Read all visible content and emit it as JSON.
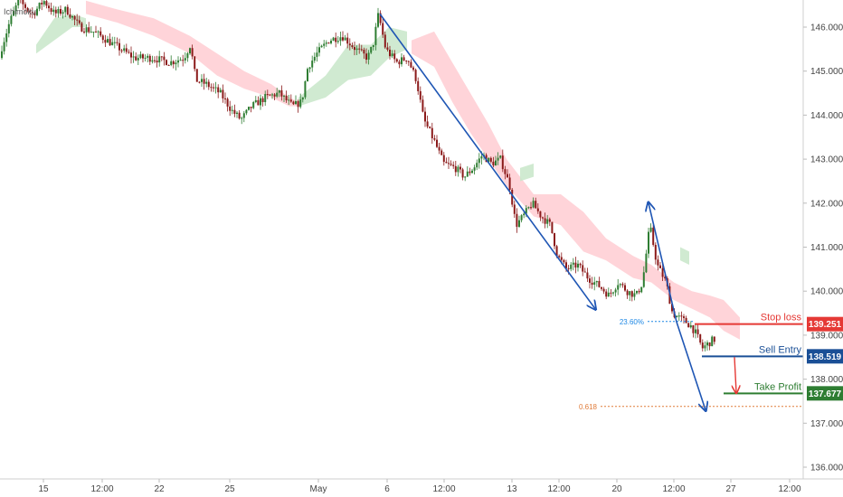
{
  "indicator": "Ichimoku",
  "colors": {
    "up": "#2e7d32",
    "down": "#8b1a1a",
    "cloud_bull": "#c8e6c9",
    "cloud_bear": "#ffcdd2",
    "arrow": "#1f56b4",
    "stop": "#e53935",
    "entry": "#1a4f96",
    "profit": "#2e7d32",
    "fib_236": "#1e88e5",
    "fib_618": "#e07b39"
  },
  "chart_data": {
    "type": "candlestick",
    "ylim": [
      135.8,
      146.6
    ],
    "y_ticks": [
      "146.000",
      "145.000",
      "144.000",
      "143.000",
      "142.000",
      "141.000",
      "140.000",
      "139.000",
      "138.000",
      "137.000",
      "136.000"
    ],
    "x_ticks": [
      "15",
      "12:00",
      "22",
      "25",
      "May",
      "6",
      "12:00",
      "13",
      "12:00",
      "20",
      "12:00",
      "27",
      "12:00"
    ],
    "price_path": [
      [
        0,
        145.3
      ],
      [
        12,
        146.1
      ],
      [
        22,
        146.6
      ],
      [
        38,
        146.3
      ],
      [
        50,
        146.6
      ],
      [
        62,
        146.3
      ],
      [
        75,
        146.4
      ],
      [
        90,
        146.0
      ],
      [
        105,
        145.9
      ],
      [
        120,
        145.7
      ],
      [
        135,
        145.5
      ],
      [
        150,
        145.3
      ],
      [
        170,
        145.3
      ],
      [
        190,
        145.2
      ],
      [
        205,
        145.3
      ],
      [
        212,
        145.6
      ],
      [
        218,
        144.8
      ],
      [
        230,
        144.7
      ],
      [
        245,
        144.5
      ],
      [
        258,
        144.1
      ],
      [
        268,
        143.9
      ],
      [
        280,
        144.2
      ],
      [
        295,
        144.4
      ],
      [
        310,
        144.5
      ],
      [
        325,
        144.2
      ],
      [
        335,
        144.3
      ],
      [
        342,
        145.1
      ],
      [
        352,
        145.4
      ],
      [
        365,
        145.7
      ],
      [
        380,
        145.8
      ],
      [
        395,
        145.5
      ],
      [
        408,
        145.3
      ],
      [
        414,
        145.6
      ],
      [
        420,
        146.3
      ],
      [
        428,
        145.5
      ],
      [
        440,
        145.2
      ],
      [
        452,
        145.3
      ],
      [
        462,
        144.8
      ],
      [
        470,
        143.9
      ],
      [
        482,
        143.4
      ],
      [
        492,
        142.9
      ],
      [
        505,
        142.8
      ],
      [
        515,
        142.6
      ],
      [
        525,
        142.8
      ],
      [
        535,
        143.1
      ],
      [
        545,
        142.9
      ],
      [
        555,
        143.0
      ],
      [
        565,
        142.4
      ],
      [
        572,
        141.5
      ],
      [
        580,
        141.7
      ],
      [
        590,
        142.0
      ],
      [
        600,
        141.7
      ],
      [
        610,
        141.5
      ],
      [
        618,
        140.8
      ],
      [
        628,
        140.5
      ],
      [
        640,
        140.6
      ],
      [
        652,
        140.3
      ],
      [
        665,
        140.1
      ],
      [
        675,
        139.9
      ],
      [
        685,
        140.2
      ],
      [
        695,
        140.0
      ],
      [
        705,
        139.9
      ],
      [
        712,
        140.2
      ],
      [
        720,
        141.5
      ],
      [
        728,
        140.6
      ],
      [
        738,
        140.2
      ],
      [
        745,
        139.5
      ],
      [
        752,
        139.4
      ],
      [
        760,
        139.3
      ],
      [
        766,
        139.2
      ],
      [
        772,
        139.0
      ],
      [
        778,
        138.7
      ],
      [
        784,
        138.8
      ],
      [
        790,
        138.9
      ]
    ],
    "cloud_segments": [
      {
        "kind": "bull",
        "top": [
          [
            40,
            145.6
          ],
          [
            60,
            146.2
          ],
          [
            80,
            146.3
          ],
          [
            95,
            146.2
          ]
        ],
        "bottom": [
          [
            40,
            145.4
          ],
          [
            60,
            145.7
          ],
          [
            80,
            146.0
          ],
          [
            95,
            146.0
          ]
        ]
      },
      {
        "kind": "bear",
        "top": [
          [
            95,
            146.6
          ],
          [
            130,
            146.4
          ],
          [
            170,
            146.2
          ],
          [
            210,
            145.8
          ],
          [
            240,
            145.4
          ],
          [
            270,
            145.0
          ]
        ],
        "bottom": [
          [
            95,
            146.3
          ],
          [
            130,
            146.1
          ],
          [
            170,
            145.8
          ],
          [
            210,
            145.4
          ],
          [
            240,
            144.9
          ],
          [
            270,
            144.6
          ]
        ]
      },
      {
        "kind": "bear",
        "top": [
          [
            270,
            145.0
          ],
          [
            300,
            144.7
          ],
          [
            320,
            144.4
          ],
          [
            330,
            144.3
          ]
        ],
        "bottom": [
          [
            270,
            144.6
          ],
          [
            300,
            144.4
          ],
          [
            320,
            144.2
          ],
          [
            330,
            144.2
          ]
        ]
      },
      {
        "kind": "bull",
        "top": [
          [
            330,
            144.4
          ],
          [
            360,
            144.9
          ],
          [
            385,
            145.6
          ],
          [
            410,
            145.6
          ],
          [
            430,
            146.0
          ],
          [
            450,
            145.9
          ]
        ],
        "bottom": [
          [
            330,
            144.2
          ],
          [
            360,
            144.4
          ],
          [
            385,
            144.8
          ],
          [
            410,
            144.9
          ],
          [
            430,
            145.3
          ],
          [
            450,
            145.5
          ]
        ]
      },
      {
        "kind": "bear",
        "top": [
          [
            455,
            145.7
          ],
          [
            480,
            145.9
          ],
          [
            500,
            145.2
          ],
          [
            520,
            144.5
          ],
          [
            540,
            143.8
          ],
          [
            560,
            143.0
          ],
          [
            590,
            142.2
          ],
          [
            620,
            142.2
          ],
          [
            645,
            141.8
          ],
          [
            670,
            141.2
          ],
          [
            700,
            140.8
          ],
          [
            720,
            140.6
          ],
          [
            745,
            140.2
          ],
          [
            765,
            140.0
          ],
          [
            785,
            139.9
          ],
          [
            800,
            139.8
          ],
          [
            818,
            139.4
          ]
        ],
        "bottom": [
          [
            455,
            145.4
          ],
          [
            480,
            145.1
          ],
          [
            500,
            144.3
          ],
          [
            520,
            143.6
          ],
          [
            540,
            143.0
          ],
          [
            560,
            142.4
          ],
          [
            590,
            141.7
          ],
          [
            620,
            141.5
          ],
          [
            645,
            140.9
          ],
          [
            670,
            140.7
          ],
          [
            700,
            140.3
          ],
          [
            720,
            140.2
          ],
          [
            745,
            139.8
          ],
          [
            765,
            139.6
          ],
          [
            785,
            139.4
          ],
          [
            800,
            139.1
          ],
          [
            818,
            138.9
          ]
        ]
      },
      {
        "kind": "bull",
        "top": [
          [
            575,
            142.8
          ],
          [
            590,
            142.9
          ]
        ],
        "bottom": [
          [
            575,
            142.5
          ],
          [
            590,
            142.6
          ]
        ]
      },
      {
        "kind": "bull",
        "top": [
          [
            752,
            141.0
          ],
          [
            762,
            140.9
          ]
        ],
        "bottom": [
          [
            752,
            140.7
          ],
          [
            762,
            140.6
          ]
        ]
      }
    ],
    "trend_arrows": [
      {
        "from": [
          420,
          146.3
        ],
        "to": [
          658,
          139.6
        ]
      },
      {
        "from": [
          748,
          139.3
        ],
        "to": [
          717,
          142.0
        ]
      },
      {
        "from": [
          748,
          139.3
        ],
        "to": [
          780,
          137.3
        ]
      }
    ],
    "small_arrow": {
      "from": [
        812,
        138.5
      ],
      "to": [
        814,
        137.7
      ]
    },
    "levels": [
      {
        "name": "Stop loss",
        "value": 139.251,
        "badge": "139.251",
        "x_start": 768
      },
      {
        "name": "Sell Entry",
        "value": 138.519,
        "badge": "138.519",
        "x_start": 776
      },
      {
        "name": "Take Profit",
        "value": 137.677,
        "badge": "137.677",
        "x_start": 800
      }
    ],
    "fib_levels": [
      {
        "label": "23.60%",
        "value": 139.31,
        "x_start": 716,
        "x_end": 768
      },
      {
        "label": "0.618",
        "value": 137.38,
        "x_start": 664,
        "x_end": 888
      }
    ]
  }
}
